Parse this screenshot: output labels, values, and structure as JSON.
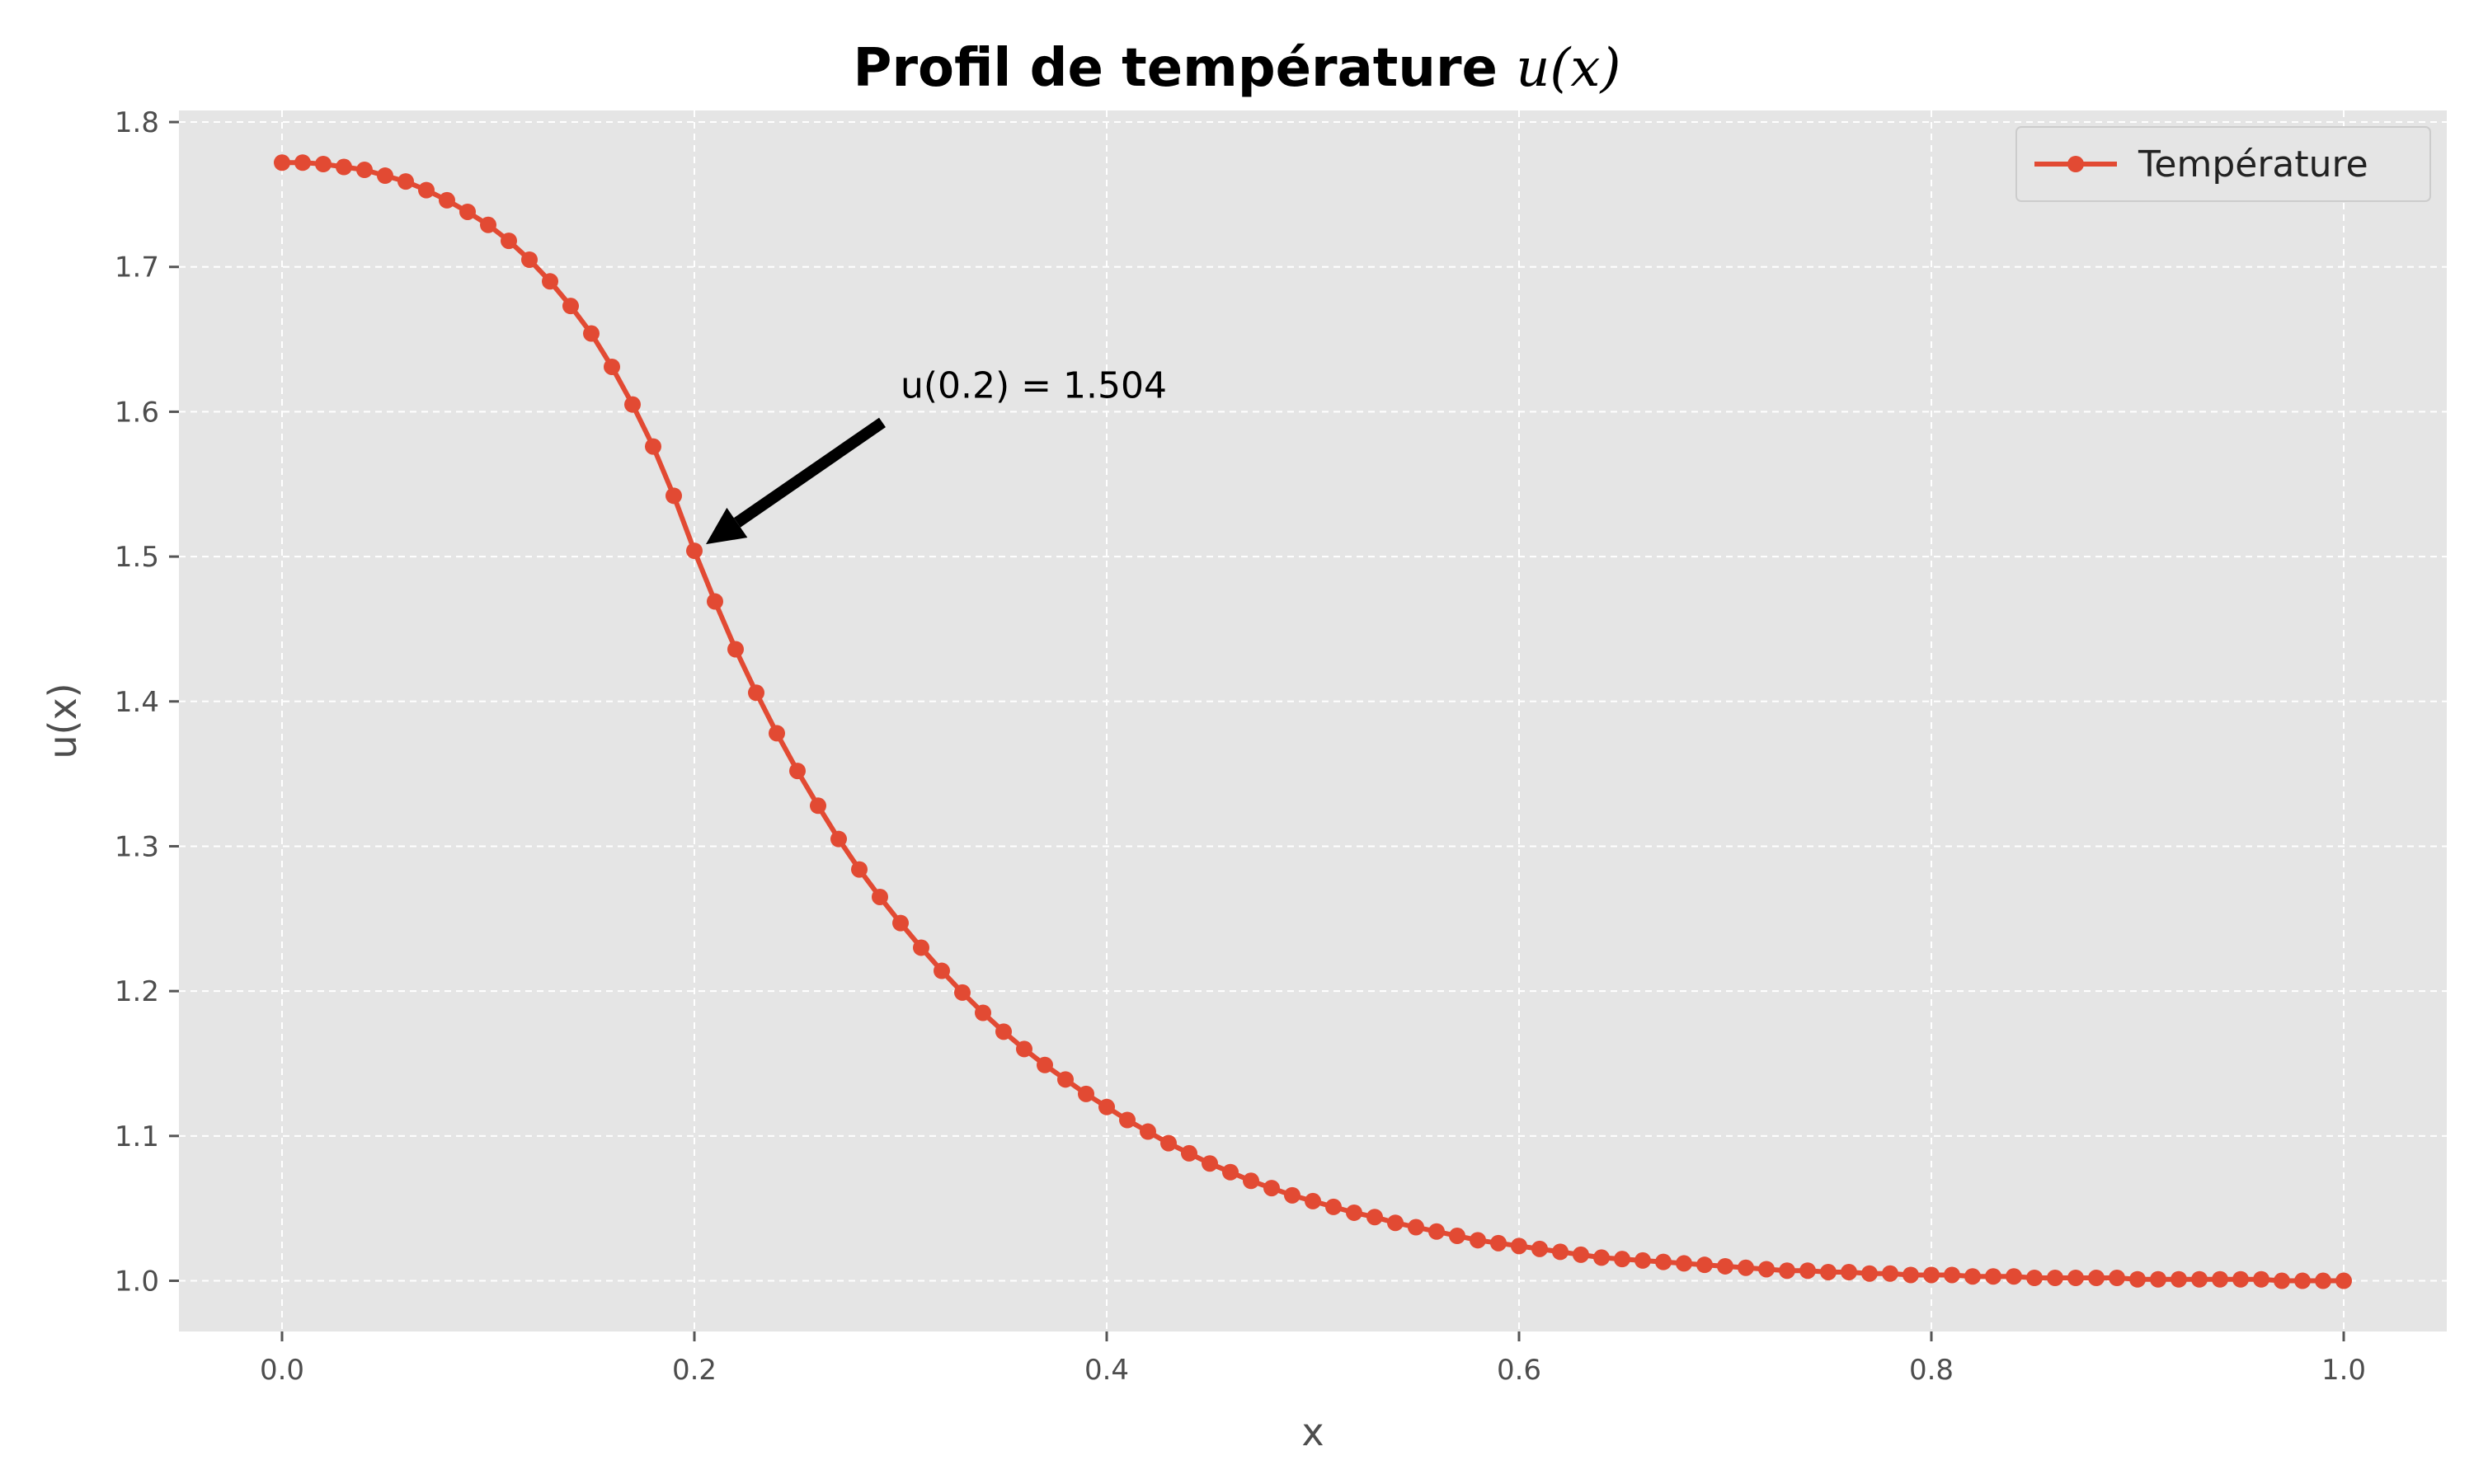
{
  "chart_data": {
    "type": "line",
    "title": "Profil de température",
    "title_math": "u(x)",
    "xlabel": "x",
    "ylabel": "u(x)",
    "xlim": [
      -0.05,
      1.05
    ],
    "ylim": [
      0.965,
      1.808
    ],
    "xticks": [
      0.0,
      0.2,
      0.4,
      0.6,
      0.8,
      1.0
    ],
    "xtick_labels": [
      "0.0",
      "0.2",
      "0.4",
      "0.6",
      "0.8",
      "1.0"
    ],
    "yticks": [
      1.0,
      1.1,
      1.2,
      1.3,
      1.4,
      1.5,
      1.6,
      1.7,
      1.8
    ],
    "ytick_labels": [
      "1.0",
      "1.1",
      "1.2",
      "1.3",
      "1.4",
      "1.5",
      "1.6",
      "1.7",
      "1.8"
    ],
    "grid": true,
    "legend_position": "top-right",
    "background_color": "#e5e5e5",
    "series": [
      {
        "name": "Température",
        "color": "#e24a33",
        "marker": "circle",
        "x": [
          0.0,
          0.01,
          0.02,
          0.03,
          0.04,
          0.05,
          0.06,
          0.07,
          0.08,
          0.09,
          0.1,
          0.11,
          0.12,
          0.13,
          0.14,
          0.15,
          0.16,
          0.17,
          0.18,
          0.19,
          0.2,
          0.21,
          0.22,
          0.23,
          0.24,
          0.25,
          0.26,
          0.27,
          0.28,
          0.29,
          0.3,
          0.31,
          0.32,
          0.33,
          0.34,
          0.35,
          0.36,
          0.37,
          0.38,
          0.39,
          0.4,
          0.41,
          0.42,
          0.43,
          0.44,
          0.45,
          0.46,
          0.47,
          0.48,
          0.49,
          0.5,
          0.51,
          0.52,
          0.53,
          0.54,
          0.55,
          0.56,
          0.57,
          0.58,
          0.59,
          0.6,
          0.61,
          0.62,
          0.63,
          0.64,
          0.65,
          0.66,
          0.67,
          0.68,
          0.69,
          0.7,
          0.71,
          0.72,
          0.73,
          0.74,
          0.75,
          0.76,
          0.77,
          0.78,
          0.79,
          0.8,
          0.81,
          0.82,
          0.83,
          0.84,
          0.85,
          0.86,
          0.87,
          0.88,
          0.89,
          0.9,
          0.91,
          0.92,
          0.93,
          0.94,
          0.95,
          0.96,
          0.97,
          0.98,
          0.99,
          1.0
        ],
        "values": [
          1.772,
          1.772,
          1.771,
          1.769,
          1.767,
          1.763,
          1.759,
          1.753,
          1.746,
          1.738,
          1.729,
          1.718,
          1.705,
          1.69,
          1.673,
          1.654,
          1.631,
          1.605,
          1.576,
          1.542,
          1.504,
          1.469,
          1.436,
          1.406,
          1.378,
          1.352,
          1.328,
          1.305,
          1.284,
          1.265,
          1.247,
          1.23,
          1.214,
          1.199,
          1.185,
          1.172,
          1.16,
          1.149,
          1.139,
          1.129,
          1.12,
          1.111,
          1.103,
          1.095,
          1.088,
          1.081,
          1.075,
          1.069,
          1.064,
          1.059,
          1.055,
          1.051,
          1.047,
          1.044,
          1.04,
          1.037,
          1.034,
          1.031,
          1.028,
          1.026,
          1.024,
          1.022,
          1.02,
          1.018,
          1.016,
          1.015,
          1.014,
          1.013,
          1.012,
          1.011,
          1.01,
          1.009,
          1.008,
          1.007,
          1.007,
          1.006,
          1.006,
          1.005,
          1.005,
          1.004,
          1.004,
          1.004,
          1.003,
          1.003,
          1.003,
          1.002,
          1.002,
          1.002,
          1.002,
          1.002,
          1.001,
          1.001,
          1.001,
          1.001,
          1.001,
          1.001,
          1.001,
          1.0,
          1.0,
          1.0,
          1.0
        ]
      }
    ],
    "annotation": {
      "text": "u(0.2) = 1.504",
      "point": [
        0.2,
        1.504
      ],
      "text_at": [
        0.3,
        1.604
      ]
    }
  }
}
